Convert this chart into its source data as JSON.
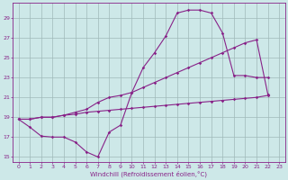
{
  "background_color": "#cde8e8",
  "grid_color": "#a0baba",
  "line_color": "#882288",
  "xlabel": "Windchill (Refroidissement éolien,°C)",
  "xlim": [
    -0.5,
    23.5
  ],
  "ylim": [
    14.5,
    30.5
  ],
  "yticks": [
    15,
    17,
    19,
    21,
    23,
    25,
    27,
    29
  ],
  "xticks": [
    0,
    1,
    2,
    3,
    4,
    5,
    6,
    7,
    8,
    9,
    10,
    11,
    12,
    13,
    14,
    15,
    16,
    17,
    18,
    19,
    20,
    21,
    22,
    23
  ],
  "line1_x": [
    0,
    1,
    2,
    3,
    4,
    5,
    6,
    7,
    8,
    9,
    10,
    11,
    12,
    13,
    14,
    15,
    16,
    17,
    18,
    19,
    20,
    21,
    22
  ],
  "line1_y": [
    18.8,
    18.0,
    17.1,
    17.0,
    17.0,
    16.5,
    15.5,
    15.0,
    17.5,
    18.2,
    21.5,
    24.0,
    25.5,
    27.2,
    29.5,
    29.8,
    29.8,
    29.5,
    27.5,
    23.2,
    23.2,
    23.0,
    23.0
  ],
  "line2_x": [
    0,
    1,
    2,
    3,
    4,
    5,
    6,
    7,
    8,
    9,
    10,
    11,
    12,
    13,
    14,
    15,
    16,
    17,
    18,
    19,
    20,
    21,
    22
  ],
  "line2_y": [
    18.8,
    18.8,
    19.0,
    19.0,
    19.2,
    19.5,
    19.8,
    20.5,
    21.0,
    21.2,
    21.5,
    22.0,
    22.5,
    23.0,
    23.5,
    24.0,
    24.5,
    25.0,
    25.5,
    26.0,
    26.5,
    26.8,
    21.3
  ],
  "line3_x": [
    0,
    1,
    2,
    3,
    4,
    5,
    6,
    7,
    8,
    9,
    10,
    11,
    12,
    13,
    14,
    15,
    16,
    17,
    18,
    19,
    20,
    21,
    22
  ],
  "line3_y": [
    18.8,
    18.8,
    19.0,
    19.0,
    19.2,
    19.3,
    19.5,
    19.6,
    19.7,
    19.8,
    19.9,
    20.0,
    20.1,
    20.2,
    20.3,
    20.4,
    20.5,
    20.6,
    20.7,
    20.8,
    20.9,
    21.0,
    21.2
  ]
}
